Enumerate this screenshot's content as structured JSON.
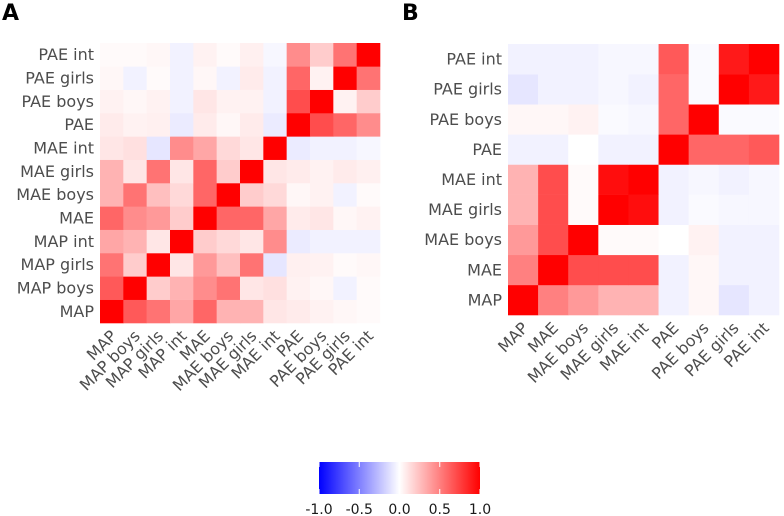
{
  "chart_data": [
    {
      "type": "heatmap",
      "panel": "A",
      "title": "",
      "labels": [
        "MAP",
        "MAP boys",
        "MAP girls",
        "MAP int",
        "MAE",
        "MAE boys",
        "MAE girls",
        "MAE int",
        "PAE",
        "PAE boys",
        "PAE girls",
        "PAE int"
      ],
      "matrix": [
        [
          1.0,
          0.65,
          0.55,
          0.35,
          0.6,
          0.3,
          0.3,
          0.1,
          0.08,
          0.05,
          0.03,
          0.02
        ],
        [
          0.65,
          1.0,
          0.2,
          0.3,
          0.45,
          0.55,
          0.1,
          0.12,
          0.05,
          0.03,
          -0.05,
          0.02
        ],
        [
          0.55,
          0.2,
          1.0,
          0.1,
          0.4,
          0.25,
          0.55,
          -0.1,
          0.06,
          0.05,
          0.02,
          0.03
        ],
        [
          0.35,
          0.3,
          0.1,
          1.0,
          0.2,
          0.15,
          0.1,
          0.45,
          -0.08,
          -0.05,
          -0.05,
          -0.05
        ],
        [
          0.6,
          0.45,
          0.4,
          0.2,
          1.0,
          0.6,
          0.6,
          0.35,
          0.08,
          0.1,
          0.03,
          0.05
        ],
        [
          0.3,
          0.55,
          0.25,
          0.15,
          0.6,
          1.0,
          0.2,
          0.15,
          0.03,
          0.05,
          -0.05,
          0.02
        ],
        [
          0.3,
          0.1,
          0.55,
          0.1,
          0.6,
          0.2,
          1.0,
          0.1,
          0.08,
          0.05,
          0.08,
          0.06
        ],
        [
          0.1,
          0.12,
          -0.1,
          0.45,
          0.35,
          0.15,
          0.1,
          1.0,
          -0.08,
          -0.05,
          -0.05,
          -0.03
        ],
        [
          0.08,
          0.05,
          0.06,
          -0.08,
          0.08,
          0.03,
          0.08,
          -0.08,
          1.0,
          0.7,
          0.6,
          0.45
        ],
        [
          0.05,
          0.03,
          0.05,
          -0.05,
          0.1,
          0.05,
          0.05,
          -0.05,
          0.7,
          1.0,
          0.05,
          0.2
        ],
        [
          0.03,
          -0.05,
          0.02,
          -0.05,
          0.03,
          -0.05,
          0.08,
          -0.05,
          0.6,
          0.05,
          1.0,
          0.55
        ],
        [
          0.02,
          0.02,
          0.03,
          -0.05,
          0.05,
          0.02,
          0.06,
          -0.03,
          0.45,
          0.2,
          0.55,
          1.0
        ]
      ]
    },
    {
      "type": "heatmap",
      "panel": "B",
      "title": "",
      "labels": [
        "MAP",
        "MAE",
        "MAE boys",
        "MAE girls",
        "MAE int",
        "PAE",
        "PAE boys",
        "PAE girls",
        "PAE int"
      ],
      "matrix": [
        [
          1.0,
          0.5,
          0.4,
          0.3,
          0.3,
          -0.05,
          0.03,
          -0.1,
          -0.05
        ],
        [
          0.5,
          1.0,
          0.7,
          0.7,
          0.7,
          -0.05,
          0.03,
          -0.05,
          -0.05
        ],
        [
          0.4,
          0.7,
          1.0,
          0.02,
          0.02,
          0.0,
          0.05,
          -0.05,
          -0.05
        ],
        [
          0.3,
          0.7,
          0.02,
          1.0,
          0.95,
          -0.05,
          -0.02,
          -0.03,
          -0.03
        ],
        [
          0.3,
          0.7,
          0.02,
          0.95,
          1.0,
          -0.05,
          -0.03,
          -0.05,
          -0.03
        ],
        [
          -0.05,
          -0.05,
          0.0,
          -0.05,
          -0.05,
          1.0,
          0.6,
          0.6,
          0.65
        ],
        [
          0.03,
          0.03,
          0.05,
          -0.02,
          -0.03,
          0.6,
          1.0,
          -0.02,
          -0.02
        ],
        [
          -0.1,
          -0.05,
          -0.05,
          -0.03,
          -0.05,
          0.6,
          -0.02,
          1.0,
          0.9
        ],
        [
          -0.05,
          -0.05,
          -0.05,
          -0.03,
          -0.03,
          0.65,
          -0.02,
          0.9,
          1.0
        ]
      ]
    }
  ],
  "colorbar": {
    "ticks": [
      "-1.0",
      "-0.5",
      "0.0",
      "0.5",
      "1.0"
    ],
    "tick_values": [
      -1.0,
      -0.5,
      0.0,
      0.5,
      1.0
    ],
    "low_color": "#0000ff",
    "mid_color": "#ffffff",
    "high_color": "#ff0000"
  }
}
